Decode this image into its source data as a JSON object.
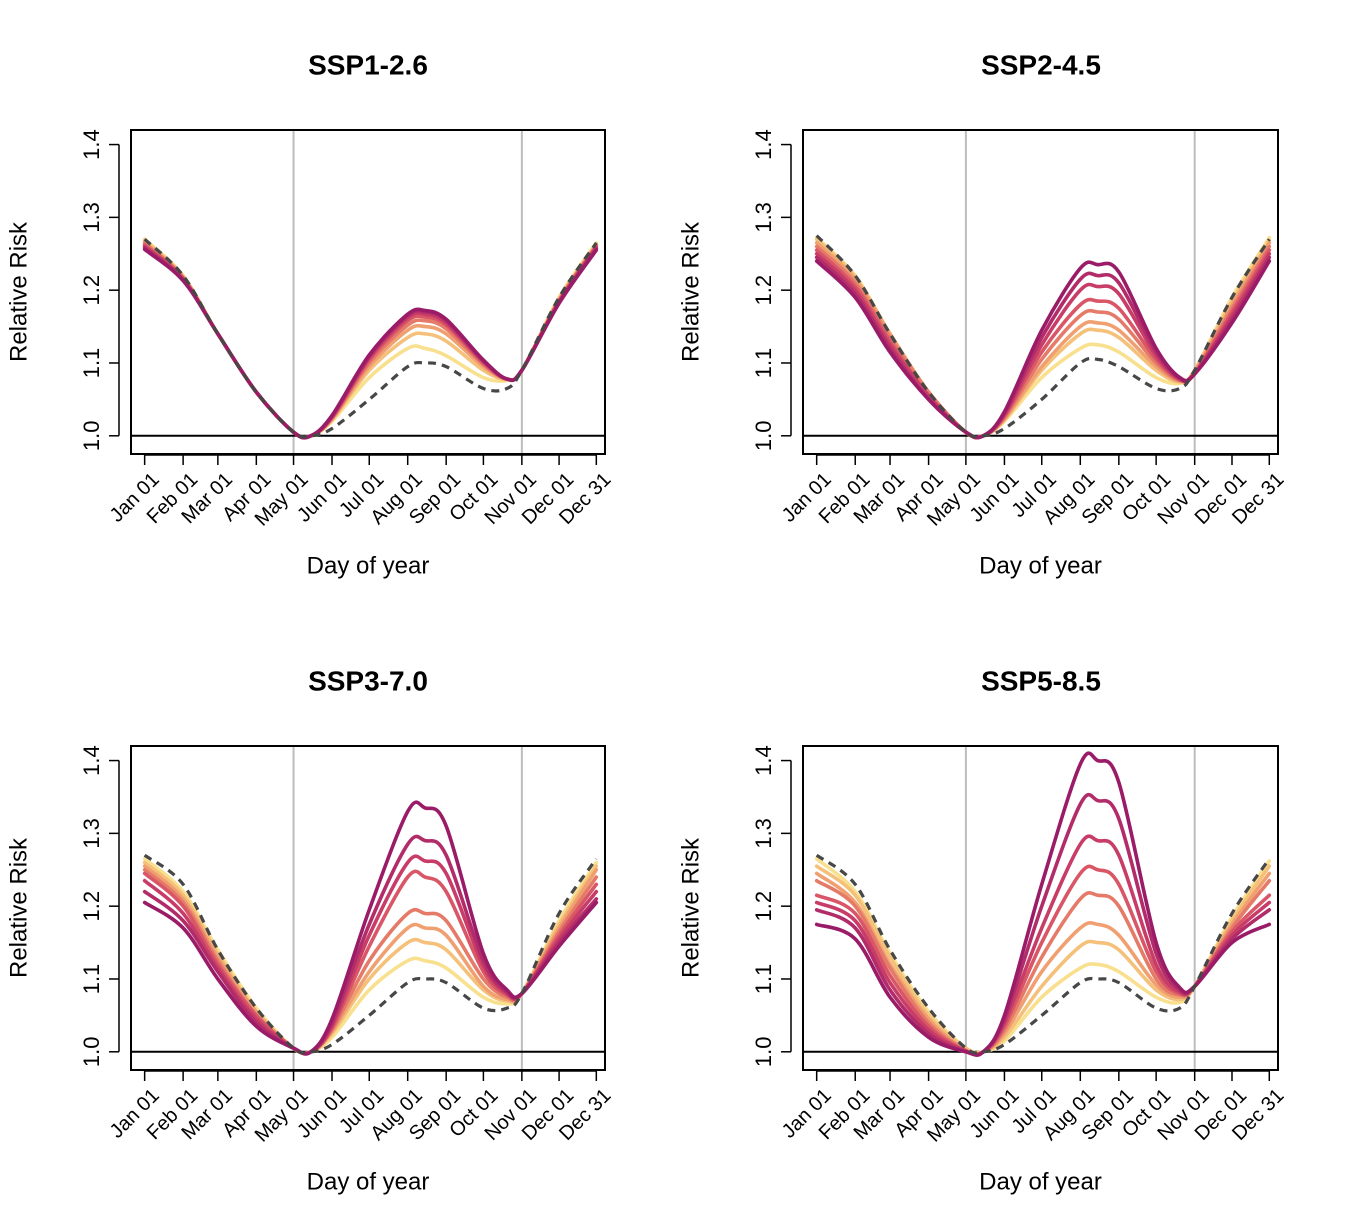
{
  "figure": {
    "colors": {
      "baseline": "#474747",
      "guide": "#bdbdbd",
      "ramp": [
        "#f8e08e",
        "#f5c07a",
        "#f0a070",
        "#e67a68",
        "#d95667",
        "#c83c68",
        "#b22c69",
        "#9a1b67"
      ]
    }
  },
  "chart_data": [
    {
      "type": "line",
      "title": "SSP1-2.6",
      "xlabel": "Day of year",
      "ylabel": "Relative Risk",
      "x_ticks": [
        "Jan 01",
        "Feb 01",
        "Mar 01",
        "Apr 01",
        "May 01",
        "Jun 01",
        "Jul 01",
        "Aug 01",
        "Sep 01",
        "Oct 01",
        "Nov 01",
        "Dec 01",
        "Dec 31"
      ],
      "y_ticks": [
        "1.0",
        "1.1",
        "1.2",
        "1.3",
        "1.4"
      ],
      "ylim": [
        0.975,
        1.42
      ],
      "xlim": [
        "Dec 20",
        "Jan 07"
      ],
      "reference_lines": {
        "horizontal": 1.0,
        "vertical": [
          "May 01",
          "Nov 01"
        ]
      },
      "x": [
        "Jan 01",
        "Feb 01",
        "Mar 01",
        "Apr 01",
        "May 01",
        "May 15",
        "Jun 01",
        "Jul 01",
        "Aug 01",
        "Aug 15",
        "Sep 01",
        "Oct 01",
        "Oct 20",
        "Nov 01",
        "Dec 01",
        "Dec 31"
      ],
      "baseline": [
        1.27,
        1.22,
        1.14,
        1.06,
        1.005,
        1.0,
        1.01,
        1.05,
        1.095,
        1.1,
        1.095,
        1.065,
        1.065,
        1.09,
        1.19,
        1.265
      ],
      "series": [
        {
          "values": [
            1.27,
            1.22,
            1.14,
            1.06,
            1.005,
            1.0,
            1.02,
            1.08,
            1.12,
            1.12,
            1.11,
            1.08,
            1.076,
            1.09,
            1.19,
            1.265
          ]
        },
        {
          "values": [
            1.268,
            1.219,
            1.14,
            1.06,
            1.005,
            1.0,
            1.022,
            1.09,
            1.135,
            1.14,
            1.13,
            1.09,
            1.077,
            1.09,
            1.188,
            1.263
          ]
        },
        {
          "values": [
            1.266,
            1.218,
            1.14,
            1.06,
            1.005,
            1.0,
            1.023,
            1.095,
            1.145,
            1.15,
            1.14,
            1.095,
            1.078,
            1.09,
            1.187,
            1.262
          ]
        },
        {
          "values": [
            1.264,
            1.217,
            1.14,
            1.06,
            1.005,
            1.0,
            1.024,
            1.1,
            1.152,
            1.158,
            1.147,
            1.098,
            1.078,
            1.09,
            1.186,
            1.261
          ]
        },
        {
          "values": [
            1.262,
            1.216,
            1.14,
            1.06,
            1.005,
            1.0,
            1.025,
            1.104,
            1.158,
            1.163,
            1.152,
            1.1,
            1.078,
            1.09,
            1.185,
            1.26
          ]
        },
        {
          "values": [
            1.26,
            1.215,
            1.14,
            1.06,
            1.005,
            1.0,
            1.026,
            1.107,
            1.162,
            1.167,
            1.155,
            1.102,
            1.078,
            1.09,
            1.184,
            1.258
          ]
        },
        {
          "values": [
            1.258,
            1.214,
            1.14,
            1.06,
            1.005,
            1.0,
            1.027,
            1.109,
            1.165,
            1.17,
            1.158,
            1.103,
            1.078,
            1.09,
            1.183,
            1.257
          ]
        },
        {
          "values": [
            1.256,
            1.213,
            1.14,
            1.06,
            1.005,
            1.0,
            1.028,
            1.111,
            1.167,
            1.172,
            1.16,
            1.104,
            1.078,
            1.09,
            1.182,
            1.255
          ]
        }
      ]
    },
    {
      "type": "line",
      "title": "SSP2-4.5",
      "xlabel": "Day of year",
      "ylabel": "Relative Risk",
      "x_ticks": [
        "Jan 01",
        "Feb 01",
        "Mar 01",
        "Apr 01",
        "May 01",
        "Jun 01",
        "Jul 01",
        "Aug 01",
        "Sep 01",
        "Oct 01",
        "Nov 01",
        "Dec 01",
        "Dec 31"
      ],
      "y_ticks": [
        "1.0",
        "1.1",
        "1.2",
        "1.3",
        "1.4"
      ],
      "ylim": [
        0.975,
        1.42
      ],
      "xlim": [
        "Dec 20",
        "Jan 07"
      ],
      "reference_lines": {
        "horizontal": 1.0,
        "vertical": [
          "May 01",
          "Nov 01"
        ]
      },
      "x": [
        "Jan 01",
        "Feb 01",
        "Mar 01",
        "Apr 01",
        "May 01",
        "May 15",
        "Jun 01",
        "Jul 01",
        "Aug 01",
        "Aug 15",
        "Sep 01",
        "Oct 01",
        "Oct 20",
        "Nov 01",
        "Dec 01",
        "Dec 31"
      ],
      "baseline": [
        1.275,
        1.22,
        1.14,
        1.06,
        1.005,
        1.0,
        1.01,
        1.05,
        1.1,
        1.105,
        1.095,
        1.065,
        1.065,
        1.09,
        1.19,
        1.27
      ],
      "series": [
        {
          "values": [
            1.272,
            1.22,
            1.14,
            1.06,
            1.005,
            1.0,
            1.02,
            1.08,
            1.12,
            1.125,
            1.115,
            1.08,
            1.072,
            1.09,
            1.19,
            1.272
          ]
        },
        {
          "values": [
            1.27,
            1.218,
            1.14,
            1.06,
            1.005,
            1.0,
            1.022,
            1.09,
            1.14,
            1.145,
            1.135,
            1.09,
            1.074,
            1.09,
            1.185,
            1.268
          ]
        },
        {
          "values": [
            1.265,
            1.215,
            1.14,
            1.06,
            1.005,
            1.0,
            1.023,
            1.095,
            1.15,
            1.155,
            1.145,
            1.095,
            1.075,
            1.088,
            1.18,
            1.265
          ]
        },
        {
          "values": [
            1.26,
            1.21,
            1.135,
            1.06,
            1.005,
            1.0,
            1.025,
            1.105,
            1.165,
            1.17,
            1.16,
            1.1,
            1.076,
            1.087,
            1.175,
            1.26
          ]
        },
        {
          "values": [
            1.255,
            1.205,
            1.13,
            1.055,
            1.005,
            1.0,
            1.027,
            1.115,
            1.18,
            1.185,
            1.175,
            1.105,
            1.077,
            1.086,
            1.17,
            1.255
          ]
        },
        {
          "values": [
            1.25,
            1.2,
            1.125,
            1.055,
            1.005,
            1.0,
            1.029,
            1.125,
            1.2,
            1.205,
            1.195,
            1.11,
            1.078,
            1.085,
            1.165,
            1.25
          ]
        },
        {
          "values": [
            1.245,
            1.195,
            1.12,
            1.05,
            1.005,
            1.0,
            1.031,
            1.135,
            1.215,
            1.22,
            1.21,
            1.115,
            1.079,
            1.085,
            1.16,
            1.245
          ]
        },
        {
          "values": [
            1.24,
            1.19,
            1.115,
            1.05,
            1.005,
            1.0,
            1.033,
            1.145,
            1.23,
            1.235,
            1.225,
            1.12,
            1.08,
            1.085,
            1.155,
            1.24
          ]
        }
      ]
    },
    {
      "type": "line",
      "title": "SSP3-7.0",
      "xlabel": "Day of year",
      "ylabel": "Relative Risk",
      "x_ticks": [
        "Jan 01",
        "Feb 01",
        "Mar 01",
        "Apr 01",
        "May 01",
        "Jun 01",
        "Jul 01",
        "Aug 01",
        "Sep 01",
        "Oct 01",
        "Nov 01",
        "Dec 01",
        "Dec 31"
      ],
      "y_ticks": [
        "1.0",
        "1.1",
        "1.2",
        "1.3",
        "1.4"
      ],
      "ylim": [
        0.975,
        1.42
      ],
      "xlim": [
        "Dec 20",
        "Jan 07"
      ],
      "reference_lines": {
        "horizontal": 1.0,
        "vertical": [
          "May 01",
          "Nov 01"
        ]
      },
      "x": [
        "Jan 01",
        "Feb 01",
        "Mar 01",
        "Apr 01",
        "May 01",
        "May 15",
        "Jun 01",
        "Jul 01",
        "Aug 01",
        "Aug 15",
        "Sep 01",
        "Oct 01",
        "Oct 20",
        "Nov 01",
        "Dec 01",
        "Dec 31"
      ],
      "baseline": [
        1.27,
        1.23,
        1.14,
        1.06,
        1.005,
        1.0,
        1.01,
        1.05,
        1.095,
        1.1,
        1.095,
        1.06,
        1.06,
        1.08,
        1.19,
        1.265
      ],
      "series": [
        {
          "values": [
            1.265,
            1.22,
            1.14,
            1.06,
            1.005,
            1.0,
            1.02,
            1.085,
            1.125,
            1.125,
            1.115,
            1.075,
            1.066,
            1.08,
            1.18,
            1.26
          ]
        },
        {
          "values": [
            1.26,
            1.215,
            1.135,
            1.055,
            1.005,
            1.0,
            1.025,
            1.1,
            1.15,
            1.15,
            1.14,
            1.085,
            1.07,
            1.08,
            1.175,
            1.255
          ]
        },
        {
          "values": [
            1.255,
            1.21,
            1.13,
            1.055,
            1.005,
            1.0,
            1.028,
            1.11,
            1.17,
            1.17,
            1.16,
            1.09,
            1.072,
            1.08,
            1.17,
            1.25
          ]
        },
        {
          "values": [
            1.25,
            1.205,
            1.125,
            1.05,
            1.005,
            1.0,
            1.03,
            1.125,
            1.19,
            1.19,
            1.18,
            1.1,
            1.075,
            1.08,
            1.165,
            1.24
          ]
        },
        {
          "values": [
            1.245,
            1.2,
            1.12,
            1.05,
            1.005,
            1.0,
            1.033,
            1.145,
            1.24,
            1.24,
            1.22,
            1.11,
            1.078,
            1.08,
            1.16,
            1.23
          ]
        },
        {
          "values": [
            1.235,
            1.19,
            1.115,
            1.045,
            1.005,
            1.0,
            1.036,
            1.16,
            1.26,
            1.262,
            1.245,
            1.118,
            1.08,
            1.08,
            1.155,
            1.22
          ]
        },
        {
          "values": [
            1.22,
            1.18,
            1.11,
            1.04,
            1.005,
            1.0,
            1.04,
            1.175,
            1.285,
            1.29,
            1.27,
            1.125,
            1.082,
            1.08,
            1.15,
            1.21
          ]
        },
        {
          "values": [
            1.205,
            1.17,
            1.1,
            1.035,
            1.005,
            1.0,
            1.045,
            1.195,
            1.33,
            1.335,
            1.31,
            1.135,
            1.085,
            1.08,
            1.145,
            1.205
          ]
        }
      ]
    },
    {
      "type": "line",
      "title": "SSP5-8.5",
      "xlabel": "Day of year",
      "ylabel": "Relative Risk",
      "x_ticks": [
        "Jan 01",
        "Feb 01",
        "Mar 01",
        "Apr 01",
        "May 01",
        "Jun 01",
        "Jul 01",
        "Aug 01",
        "Sep 01",
        "Oct 01",
        "Nov 01",
        "Dec 01",
        "Dec 31"
      ],
      "y_ticks": [
        "1.0",
        "1.1",
        "1.2",
        "1.3",
        "1.4"
      ],
      "ylim": [
        0.975,
        1.42
      ],
      "xlim": [
        "Dec 20",
        "Jan 07"
      ],
      "reference_lines": {
        "horizontal": 1.0,
        "vertical": [
          "May 01",
          "Nov 01"
        ]
      },
      "x": [
        "Jan 01",
        "Feb 01",
        "Mar 01",
        "Apr 01",
        "May 01",
        "May 15",
        "Jun 01",
        "Jul 01",
        "Aug 01",
        "Aug 15",
        "Sep 01",
        "Oct 01",
        "Oct 20",
        "Nov 01",
        "Dec 01",
        "Dec 31"
      ],
      "baseline": [
        1.27,
        1.23,
        1.14,
        1.06,
        1.005,
        1.0,
        1.01,
        1.05,
        1.095,
        1.1,
        1.095,
        1.06,
        1.06,
        1.09,
        1.19,
        1.265
      ],
      "series": [
        {
          "values": [
            1.265,
            1.22,
            1.135,
            1.055,
            1.005,
            1.0,
            1.015,
            1.075,
            1.115,
            1.12,
            1.11,
            1.075,
            1.068,
            1.09,
            1.185,
            1.262
          ]
        },
        {
          "values": [
            1.255,
            1.215,
            1.13,
            1.05,
            1.005,
            1.0,
            1.02,
            1.09,
            1.145,
            1.15,
            1.14,
            1.085,
            1.072,
            1.09,
            1.18,
            1.255
          ]
        },
        {
          "values": [
            1.245,
            1.205,
            1.12,
            1.045,
            1.002,
            1.0,
            1.025,
            1.11,
            1.17,
            1.175,
            1.16,
            1.092,
            1.075,
            1.09,
            1.175,
            1.245
          ]
        },
        {
          "values": [
            1.235,
            1.2,
            1.115,
            1.04,
            1.002,
            1.0,
            1.03,
            1.13,
            1.21,
            1.215,
            1.2,
            1.1,
            1.078,
            1.09,
            1.17,
            1.235
          ]
        },
        {
          "values": [
            1.215,
            1.19,
            1.105,
            1.035,
            1.001,
            1.0,
            1.035,
            1.15,
            1.245,
            1.25,
            1.23,
            1.11,
            1.08,
            1.09,
            1.165,
            1.215
          ]
        },
        {
          "values": [
            1.205,
            1.18,
            1.095,
            1.03,
            1.001,
            1.0,
            1.04,
            1.17,
            1.285,
            1.29,
            1.27,
            1.12,
            1.082,
            1.09,
            1.16,
            1.205
          ]
        },
        {
          "values": [
            1.195,
            1.17,
            1.085,
            1.025,
            1.0,
            1.0,
            1.045,
            1.2,
            1.34,
            1.345,
            1.32,
            1.135,
            1.085,
            1.09,
            1.155,
            1.195
          ]
        },
        {
          "values": [
            1.175,
            1.155,
            1.075,
            1.02,
            1.0,
            1.0,
            1.05,
            1.23,
            1.395,
            1.4,
            1.37,
            1.15,
            1.088,
            1.09,
            1.15,
            1.175
          ]
        }
      ]
    }
  ]
}
